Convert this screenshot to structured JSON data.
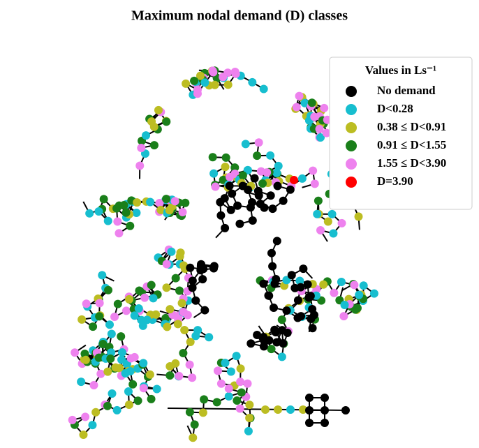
{
  "title": "Maximum nodal demand (D) classes",
  "legend": {
    "title": "Values in Ls⁻¹",
    "items": [
      {
        "label": "No demand",
        "color": "#000000"
      },
      {
        "label": "D<0.28",
        "color": "#17becf"
      },
      {
        "label": "0.38 ≤ D<0.91",
        "color": "#bcbd22"
      },
      {
        "label": "0.91 ≤ D<1.55",
        "color": "#1a7f1a"
      },
      {
        "label": "1.55 ≤ D<3.90",
        "color": "#ee82ee"
      },
      {
        "label": "D=3.90",
        "color": "#ff0000"
      }
    ]
  }
}
